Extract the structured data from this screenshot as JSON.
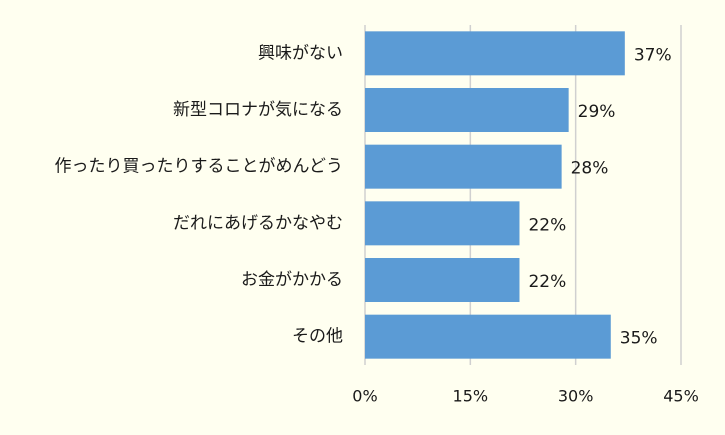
{
  "chart_data": {
    "type": "bar",
    "orientation": "horizontal",
    "categories": [
      "興味がない",
      "新型コロナが気になる",
      "作ったり買ったりすることがめんどう",
      "だれにあげるかなやむ",
      "お金がかかる",
      "その他"
    ],
    "values": [
      37,
      29,
      28,
      22,
      22,
      35
    ],
    "value_labels": [
      "37%",
      "29%",
      "28%",
      "22%",
      "22%",
      "35%"
    ],
    "x_ticks": [
      0,
      15,
      30,
      45
    ],
    "x_tick_labels": [
      "0%",
      "15%",
      "30%",
      "45%"
    ],
    "xlim": [
      0,
      45
    ],
    "grid": true,
    "legend": "none",
    "title": "",
    "xlabel": "",
    "ylabel": "",
    "colors": {
      "bar": "#5b9bd5",
      "grid": "#d0d0d0",
      "background": "#fffff0"
    }
  }
}
